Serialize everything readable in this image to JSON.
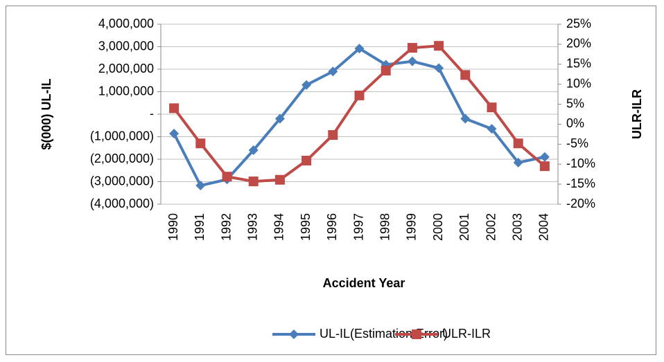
{
  "chart_data": {
    "type": "line",
    "x_label": "Accident Year",
    "y_label": "$(000) UL-IL",
    "y2_label": "ULR-ILR",
    "categories": [
      "1990",
      "1991",
      "1992",
      "1993",
      "1994",
      "1995",
      "1996",
      "1997",
      "1998",
      "1999",
      "2000",
      "2001",
      "2002",
      "2003",
      "2004"
    ],
    "series": [
      {
        "name": "UL-IL(Estimation Error)",
        "color": "#4a7ebb",
        "marker": "diamond",
        "values": [
          -860000,
          -3170000,
          -2900000,
          -1600000,
          -200000,
          1300000,
          1900000,
          2920000,
          2200000,
          2350000,
          2050000,
          -200000,
          -650000,
          -2150000,
          -1900000
        ]
      },
      {
        "name": "ULR-ILR",
        "color": "#be4b48",
        "marker": "square",
        "axis": "y2",
        "values": [
          4.0,
          -4.8,
          -13.1,
          -14.3,
          -13.9,
          -9.1,
          -2.7,
          7.2,
          13.4,
          19.1,
          19.6,
          12.3,
          4.2,
          -4.8,
          -10.5
        ]
      }
    ],
    "ylim": [
      -4000000,
      4000000
    ],
    "yticks": [
      {
        "value": -4000000,
        "label": "(4,000,000)"
      },
      {
        "value": -3000000,
        "label": "(3,000,000)"
      },
      {
        "value": -2000000,
        "label": "(2,000,000)"
      },
      {
        "value": -1000000,
        "label": "(1,000,000)"
      },
      {
        "value": 0,
        "label": "-"
      },
      {
        "value": 1000000,
        "label": "1,000,000"
      },
      {
        "value": 2000000,
        "label": "2,000,000"
      },
      {
        "value": 3000000,
        "label": "3,000,000"
      },
      {
        "value": 4000000,
        "label": "4,000,000"
      }
    ],
    "y2lim": [
      -20,
      25
    ],
    "y2ticks": [
      {
        "value": -20,
        "label": "-20%"
      },
      {
        "value": -15,
        "label": "-15%"
      },
      {
        "value": -10,
        "label": "-10%"
      },
      {
        "value": -5,
        "label": "-5%"
      },
      {
        "value": 0,
        "label": "0%"
      },
      {
        "value": 5,
        "label": "5%"
      },
      {
        "value": 10,
        "label": "10%"
      },
      {
        "value": 15,
        "label": "15%"
      },
      {
        "value": 20,
        "label": "20%"
      },
      {
        "value": 25,
        "label": "25%"
      }
    ],
    "grid": true,
    "legend": "bottom"
  }
}
